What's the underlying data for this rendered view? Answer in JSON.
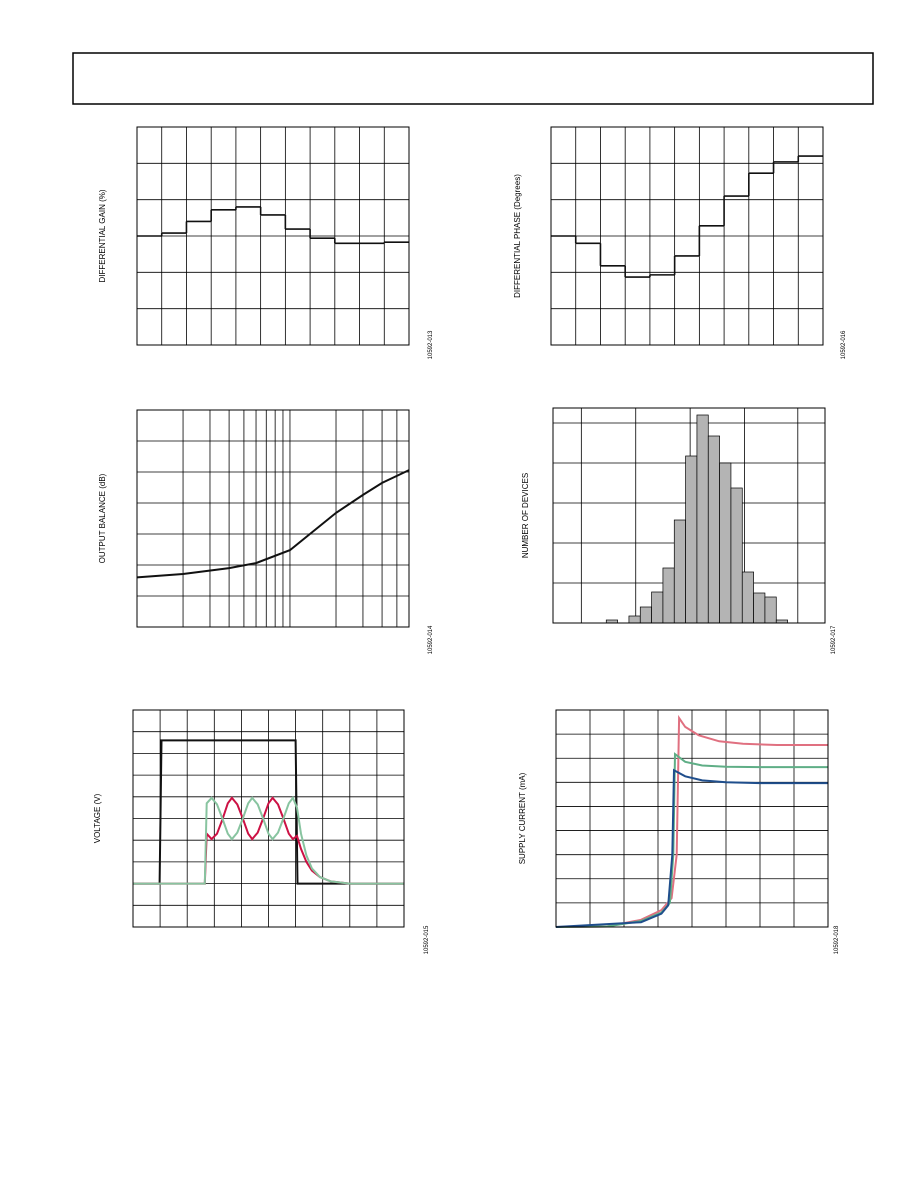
{
  "chart_data": [
    {
      "type": "step",
      "ylabel": "DIFFERENTIAL GAIN (%)",
      "figure_id": "10592-013",
      "xlim": [
        0,
        11
      ],
      "ylim": [
        0,
        6
      ],
      "xgrid": [
        1,
        2,
        3,
        4,
        5,
        6,
        7,
        8,
        9,
        10
      ],
      "ygrid": [
        1,
        2,
        3,
        4,
        5
      ],
      "color": "#111111",
      "x": [
        0,
        1,
        2,
        3,
        4,
        5,
        6,
        7,
        8,
        9,
        10
      ],
      "values": [
        3.0,
        3.08,
        3.4,
        3.72,
        3.8,
        3.58,
        3.19,
        2.94,
        2.8,
        2.8,
        2.83
      ]
    },
    {
      "type": "step",
      "ylabel": "DIFFERENTIAL PHASE (Degrees)",
      "figure_id": "10592-016",
      "xlim": [
        0,
        11
      ],
      "ylim": [
        0,
        6
      ],
      "xgrid": [
        1,
        2,
        3,
        4,
        5,
        6,
        7,
        8,
        9,
        10
      ],
      "ygrid": [
        1,
        2,
        3,
        4,
        5
      ],
      "color": "#111111",
      "x": [
        0,
        1,
        2,
        3,
        4,
        5,
        6,
        7,
        8,
        9,
        10
      ],
      "values": [
        3.0,
        2.8,
        2.18,
        1.87,
        1.93,
        2.45,
        3.28,
        4.1,
        4.73,
        5.04,
        5.2
      ]
    },
    {
      "type": "line",
      "ylabel": "OUTPUT BALANCE (dB)",
      "figure_id": "10592-014",
      "log_x": true,
      "xlim": [
        1,
        60
      ],
      "ylim": [
        0,
        7
      ],
      "xgrid": [
        2,
        3,
        4,
        5,
        6,
        7,
        8,
        9,
        10,
        20,
        30,
        40,
        50
      ],
      "ygrid": [
        1,
        2,
        3,
        4,
        5,
        6
      ],
      "series": [
        {
          "color": "#111111",
          "x": [
            1,
            2,
            4,
            6,
            10,
            20,
            30,
            40,
            60
          ],
          "values": [
            1.6,
            1.71,
            1.9,
            2.06,
            2.48,
            3.68,
            4.26,
            4.65,
            5.06
          ]
        }
      ]
    },
    {
      "type": "histogram",
      "ylabel": "NUMBER OF DEVICES",
      "figure_id": "10592-017",
      "xlim": [
        0,
        24
      ],
      "ylim": [
        0,
        53.75
      ],
      "xgrid": [
        2.5,
        7.3,
        12.1,
        16.9,
        21.6
      ],
      "ygrid": [
        10,
        20,
        30,
        40,
        50
      ],
      "color": "#b4b4b4",
      "bins": [
        4.7,
        5.7,
        6.7,
        7.7,
        8.7,
        9.7,
        10.7,
        11.7,
        12.7,
        13.7,
        14.7,
        15.7,
        16.7,
        17.7,
        18.7,
        19.7,
        20.7
      ],
      "counts": [
        0.75,
        0,
        1.75,
        4,
        7.75,
        13.75,
        25.75,
        41.75,
        52,
        46.75,
        40,
        33.75,
        12.75,
        7.5,
        6.5,
        0.75
      ]
    },
    {
      "type": "line",
      "ylabel": "VOLTAGE (V)",
      "figure_id": "10592-015",
      "xlim": [
        0,
        10
      ],
      "ylim": [
        0,
        10
      ],
      "xgrid": [
        1,
        2,
        3,
        4,
        5,
        6,
        7,
        8,
        9
      ],
      "ygrid": [
        1,
        2,
        3,
        4,
        5,
        6,
        7,
        8,
        9
      ],
      "series": [
        {
          "color": "#111111",
          "x": [
            0,
            0.98,
            1.05,
            6.0,
            6.07,
            10
          ],
          "values": [
            2,
            2,
            8.6,
            8.6,
            2,
            2
          ]
        },
        {
          "color": "#cc1144",
          "x": [
            0,
            2.65,
            2.72,
            2.9,
            3.1,
            3.3,
            3.5,
            3.65,
            3.85,
            4.05,
            4.25,
            4.4,
            4.6,
            4.8,
            5.0,
            5.15,
            5.35,
            5.55,
            5.75,
            5.9,
            6.05,
            6.2,
            6.4,
            6.6,
            6.9,
            7.3,
            8,
            10
          ],
          "values": [
            2,
            2,
            4.3,
            4.05,
            4.3,
            4.95,
            5.7,
            5.95,
            5.65,
            5.0,
            4.3,
            4.05,
            4.35,
            5.0,
            5.7,
            5.95,
            5.65,
            5.0,
            4.3,
            4.05,
            4.2,
            3.6,
            3.0,
            2.6,
            2.3,
            2.1,
            2,
            2
          ]
        },
        {
          "color": "#88c4a0",
          "x": [
            0,
            2.65,
            2.72,
            2.9,
            3.1,
            3.3,
            3.5,
            3.65,
            3.85,
            4.05,
            4.25,
            4.4,
            4.6,
            4.8,
            5.0,
            5.15,
            5.35,
            5.55,
            5.75,
            5.9,
            6.05,
            6.2,
            6.4,
            6.6,
            6.9,
            7.3,
            8,
            10
          ],
          "values": [
            2,
            2,
            5.7,
            5.95,
            5.65,
            5.0,
            4.3,
            4.05,
            4.35,
            5.0,
            5.7,
            5.95,
            5.65,
            5.0,
            4.3,
            4.05,
            4.35,
            5.0,
            5.7,
            5.95,
            5.5,
            4.3,
            3.3,
            2.7,
            2.3,
            2.1,
            2,
            2
          ]
        }
      ]
    },
    {
      "type": "line",
      "ylabel": "SUPPLY CURRENT (mA)",
      "figure_id": "10592-018",
      "xlim": [
        0,
        8
      ],
      "ylim": [
        0,
        9
      ],
      "xgrid": [
        1,
        2,
        3,
        4,
        5,
        6,
        7
      ],
      "ygrid": [
        1,
        2,
        3,
        4,
        5,
        6,
        7,
        8
      ],
      "series": [
        {
          "color": "#e07080",
          "x": [
            0,
            1.5,
            2.5,
            3.1,
            3.4,
            3.55,
            3.62,
            3.8,
            4.2,
            4.8,
            5.5,
            6.5,
            8
          ],
          "values": [
            0,
            0.02,
            0.3,
            0.7,
            1.2,
            3,
            8.67,
            8.3,
            7.95,
            7.7,
            7.6,
            7.55,
            7.55
          ]
        },
        {
          "color": "#5fae86",
          "x": [
            0,
            1.5,
            2.5,
            3.1,
            3.35,
            3.45,
            3.5,
            3.8,
            4.3,
            5,
            6,
            8
          ],
          "values": [
            0,
            0.02,
            0.25,
            0.6,
            1.0,
            3,
            7.17,
            6.85,
            6.7,
            6.65,
            6.63,
            6.63
          ]
        },
        {
          "color": "#1f4e8c",
          "x": [
            0,
            2.5,
            3.1,
            3.3,
            3.42,
            3.47,
            3.8,
            4.3,
            5,
            6,
            8
          ],
          "values": [
            0,
            0.2,
            0.55,
            0.9,
            3,
            6.5,
            6.25,
            6.08,
            6.0,
            5.97,
            5.97
          ]
        }
      ]
    }
  ]
}
